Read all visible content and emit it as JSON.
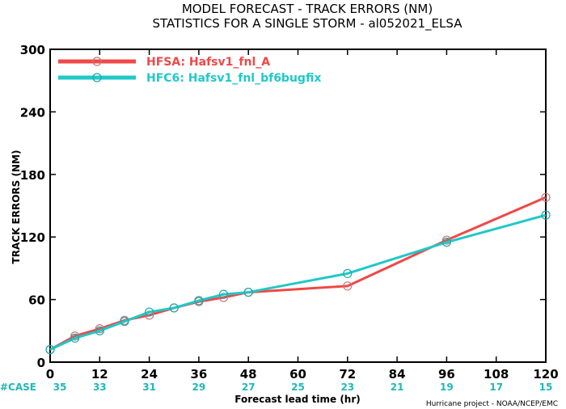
{
  "chart_data": {
    "type": "line",
    "title": "MODEL FORECAST - TRACK ERRORS (NM)",
    "subtitle": "STATISTICS FOR A SINGLE STORM - al052021_ELSA",
    "xlabel": "Forecast lead time (hr)",
    "ylabel": "TRACK ERRORS (NM)",
    "xlim": [
      0,
      120
    ],
    "ylim": [
      0,
      300
    ],
    "x_ticks": [
      "0",
      "12",
      "24",
      "36",
      "48",
      "60",
      "72",
      "84",
      "96",
      "108",
      "120"
    ],
    "y_ticks": [
      "0",
      "60",
      "120",
      "180",
      "240",
      "300"
    ],
    "y_tick_values": [
      0,
      60,
      120,
      180,
      240,
      300
    ],
    "x_tick_values": [
      0,
      12,
      24,
      36,
      48,
      60,
      72,
      84,
      96,
      108,
      120
    ],
    "grid": false,
    "legend": "top-left",
    "series": [
      {
        "name": "HFSA: Hafsv1_fnl_A",
        "color": "#f04848",
        "x": [
          0,
          6,
          12,
          18,
          24,
          30,
          36,
          42,
          48,
          72,
          96,
          120
        ],
        "y": [
          12,
          25,
          32,
          40,
          45,
          52,
          58,
          62,
          67,
          73,
          117,
          158
        ]
      },
      {
        "name": "HFC6: Hafsv1_fnl_bf6bugfix",
        "color": "#20c8c8",
        "x": [
          0,
          6,
          12,
          18,
          24,
          30,
          36,
          42,
          48,
          72,
          96,
          120
        ],
        "y": [
          12,
          23,
          30,
          39,
          48,
          52,
          59,
          65,
          67,
          85,
          115,
          141
        ]
      }
    ],
    "cases": {
      "label": "#CASE",
      "x": [
        0,
        12,
        24,
        36,
        48,
        60,
        72,
        84,
        96,
        108,
        120
      ],
      "values": [
        "35",
        "33",
        "31",
        "29",
        "27",
        "25",
        "23",
        "21",
        "19",
        "17",
        "15"
      ]
    },
    "credit": "Hurricane project - NOAA/NCEP/EMC"
  }
}
